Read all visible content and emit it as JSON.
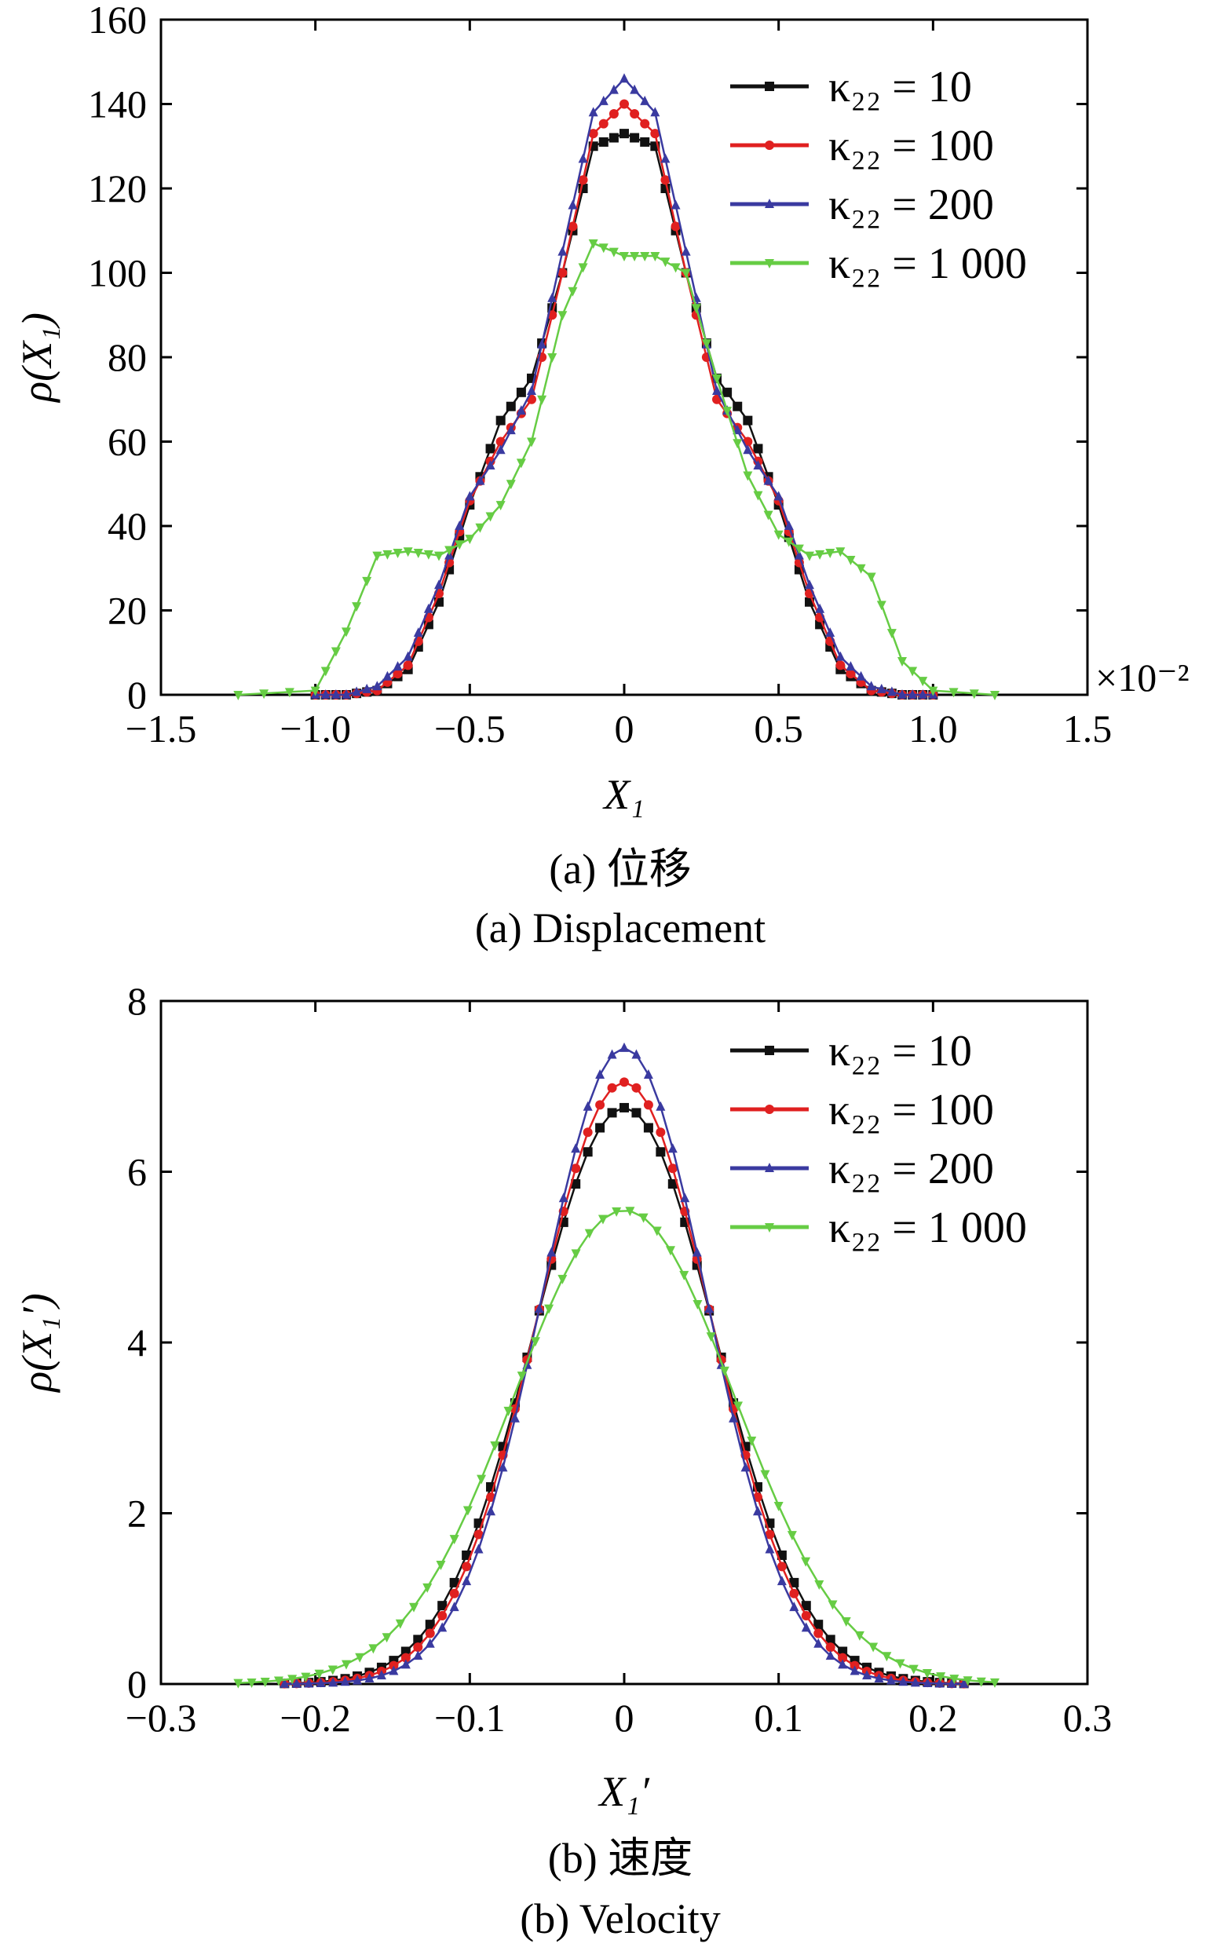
{
  "chart_data": [
    {
      "type": "line",
      "panel": "a",
      "caption_cn": "(a)  位移",
      "caption_en": "(a)  Displacement",
      "xlabel": "X₁",
      "ylabel": "ρ(X₁)",
      "x_multiplier": "×10⁻²",
      "xlim": [
        -1.5,
        1.5
      ],
      "ylim": [
        0,
        160
      ],
      "xticks": [
        "−1.5",
        "−1.0",
        "−0.5",
        "0",
        "0.5",
        "1.0",
        "1.5"
      ],
      "yticks": [
        "0",
        "20",
        "40",
        "60",
        "80",
        "100",
        "120",
        "140",
        "160"
      ],
      "legend_position": "top-right",
      "series": [
        {
          "name": "κ₂₂ = 10",
          "color": "#111111",
          "marker": "square",
          "x": [
            -1.0,
            -0.9,
            -0.8,
            -0.7,
            -0.6,
            -0.5,
            -0.4,
            -0.3,
            -0.2,
            -0.1,
            0.0,
            0.1,
            0.2,
            0.3,
            0.4,
            0.5,
            0.6,
            0.7,
            0.8,
            0.9,
            1.0
          ],
          "y": [
            0,
            0,
            1,
            6,
            22,
            45,
            65,
            75,
            100,
            130,
            133,
            130,
            100,
            75,
            65,
            45,
            22,
            6,
            1,
            0,
            0
          ]
        },
        {
          "name": "κ₂₂ = 100",
          "color": "#e02020",
          "marker": "circle",
          "x": [
            -1.0,
            -0.9,
            -0.8,
            -0.7,
            -0.6,
            -0.5,
            -0.4,
            -0.3,
            -0.2,
            -0.1,
            0.0,
            0.1,
            0.2,
            0.3,
            0.4,
            0.5,
            0.6,
            0.7,
            0.8,
            0.9,
            1.0
          ],
          "y": [
            0,
            0,
            1,
            7,
            24,
            46,
            60,
            70,
            100,
            133,
            140,
            133,
            100,
            70,
            60,
            46,
            24,
            7,
            1,
            0,
            0
          ]
        },
        {
          "name": "κ₂₂ = 200",
          "color": "#3a3aa0",
          "marker": "triangle-up",
          "x": [
            -1.0,
            -0.9,
            -0.8,
            -0.7,
            -0.6,
            -0.5,
            -0.4,
            -0.3,
            -0.2,
            -0.1,
            0.0,
            0.1,
            0.2,
            0.3,
            0.4,
            0.5,
            0.6,
            0.7,
            0.8,
            0.9,
            1.0
          ],
          "y": [
            0,
            0,
            2,
            9,
            26,
            47,
            58,
            72,
            105,
            138,
            146,
            138,
            105,
            72,
            58,
            47,
            26,
            9,
            2,
            0,
            0
          ]
        },
        {
          "name": "κ₂₂ = 1 000",
          "color": "#66cc44",
          "marker": "triangle-down",
          "x": [
            -1.25,
            -1.0,
            -0.9,
            -0.8,
            -0.7,
            -0.6,
            -0.5,
            -0.4,
            -0.3,
            -0.2,
            -0.1,
            0.0,
            0.1,
            0.2,
            0.3,
            0.4,
            0.5,
            0.6,
            0.7,
            0.8,
            0.9,
            1.0,
            1.2
          ],
          "y": [
            0,
            1,
            15,
            33,
            34,
            33,
            37,
            45,
            60,
            90,
            107,
            104,
            104,
            100,
            75,
            52,
            38,
            33,
            34,
            28,
            8,
            1,
            0
          ]
        }
      ]
    },
    {
      "type": "line",
      "panel": "b",
      "caption_cn": "(b)  速度",
      "caption_en": "(b)  Velocity",
      "xlabel": "X₁′",
      "ylabel": "ρ(X₁′)",
      "xlim": [
        -0.3,
        0.3
      ],
      "ylim": [
        0,
        8
      ],
      "xticks": [
        "−0.3",
        "−0.2",
        "−0.1",
        "0",
        "0.1",
        "0.2",
        "0.3"
      ],
      "yticks": [
        "0",
        "2",
        "4",
        "6",
        "8"
      ],
      "legend_position": "top-right",
      "series": [
        {
          "name": "κ₂₂ = 10",
          "color": "#111111",
          "marker": "square",
          "peak": 6.75,
          "sigma": 0.059,
          "x_range": [
            -0.22,
            0.22
          ]
        },
        {
          "name": "κ₂₂ = 100",
          "color": "#e02020",
          "marker": "circle",
          "peak": 7.05,
          "sigma": 0.0565,
          "x_range": [
            -0.22,
            0.22
          ]
        },
        {
          "name": "κ₂₂ = 200",
          "color": "#3a3aa0",
          "marker": "triangle-up",
          "peak": 7.45,
          "sigma": 0.0535,
          "x_range": [
            -0.22,
            0.22
          ]
        },
        {
          "name": "κ₂₂ = 1 000",
          "color": "#66cc44",
          "marker": "triangle-down",
          "peak": 5.55,
          "sigma": 0.0715,
          "x_range": [
            -0.25,
            0.24
          ]
        }
      ]
    }
  ]
}
